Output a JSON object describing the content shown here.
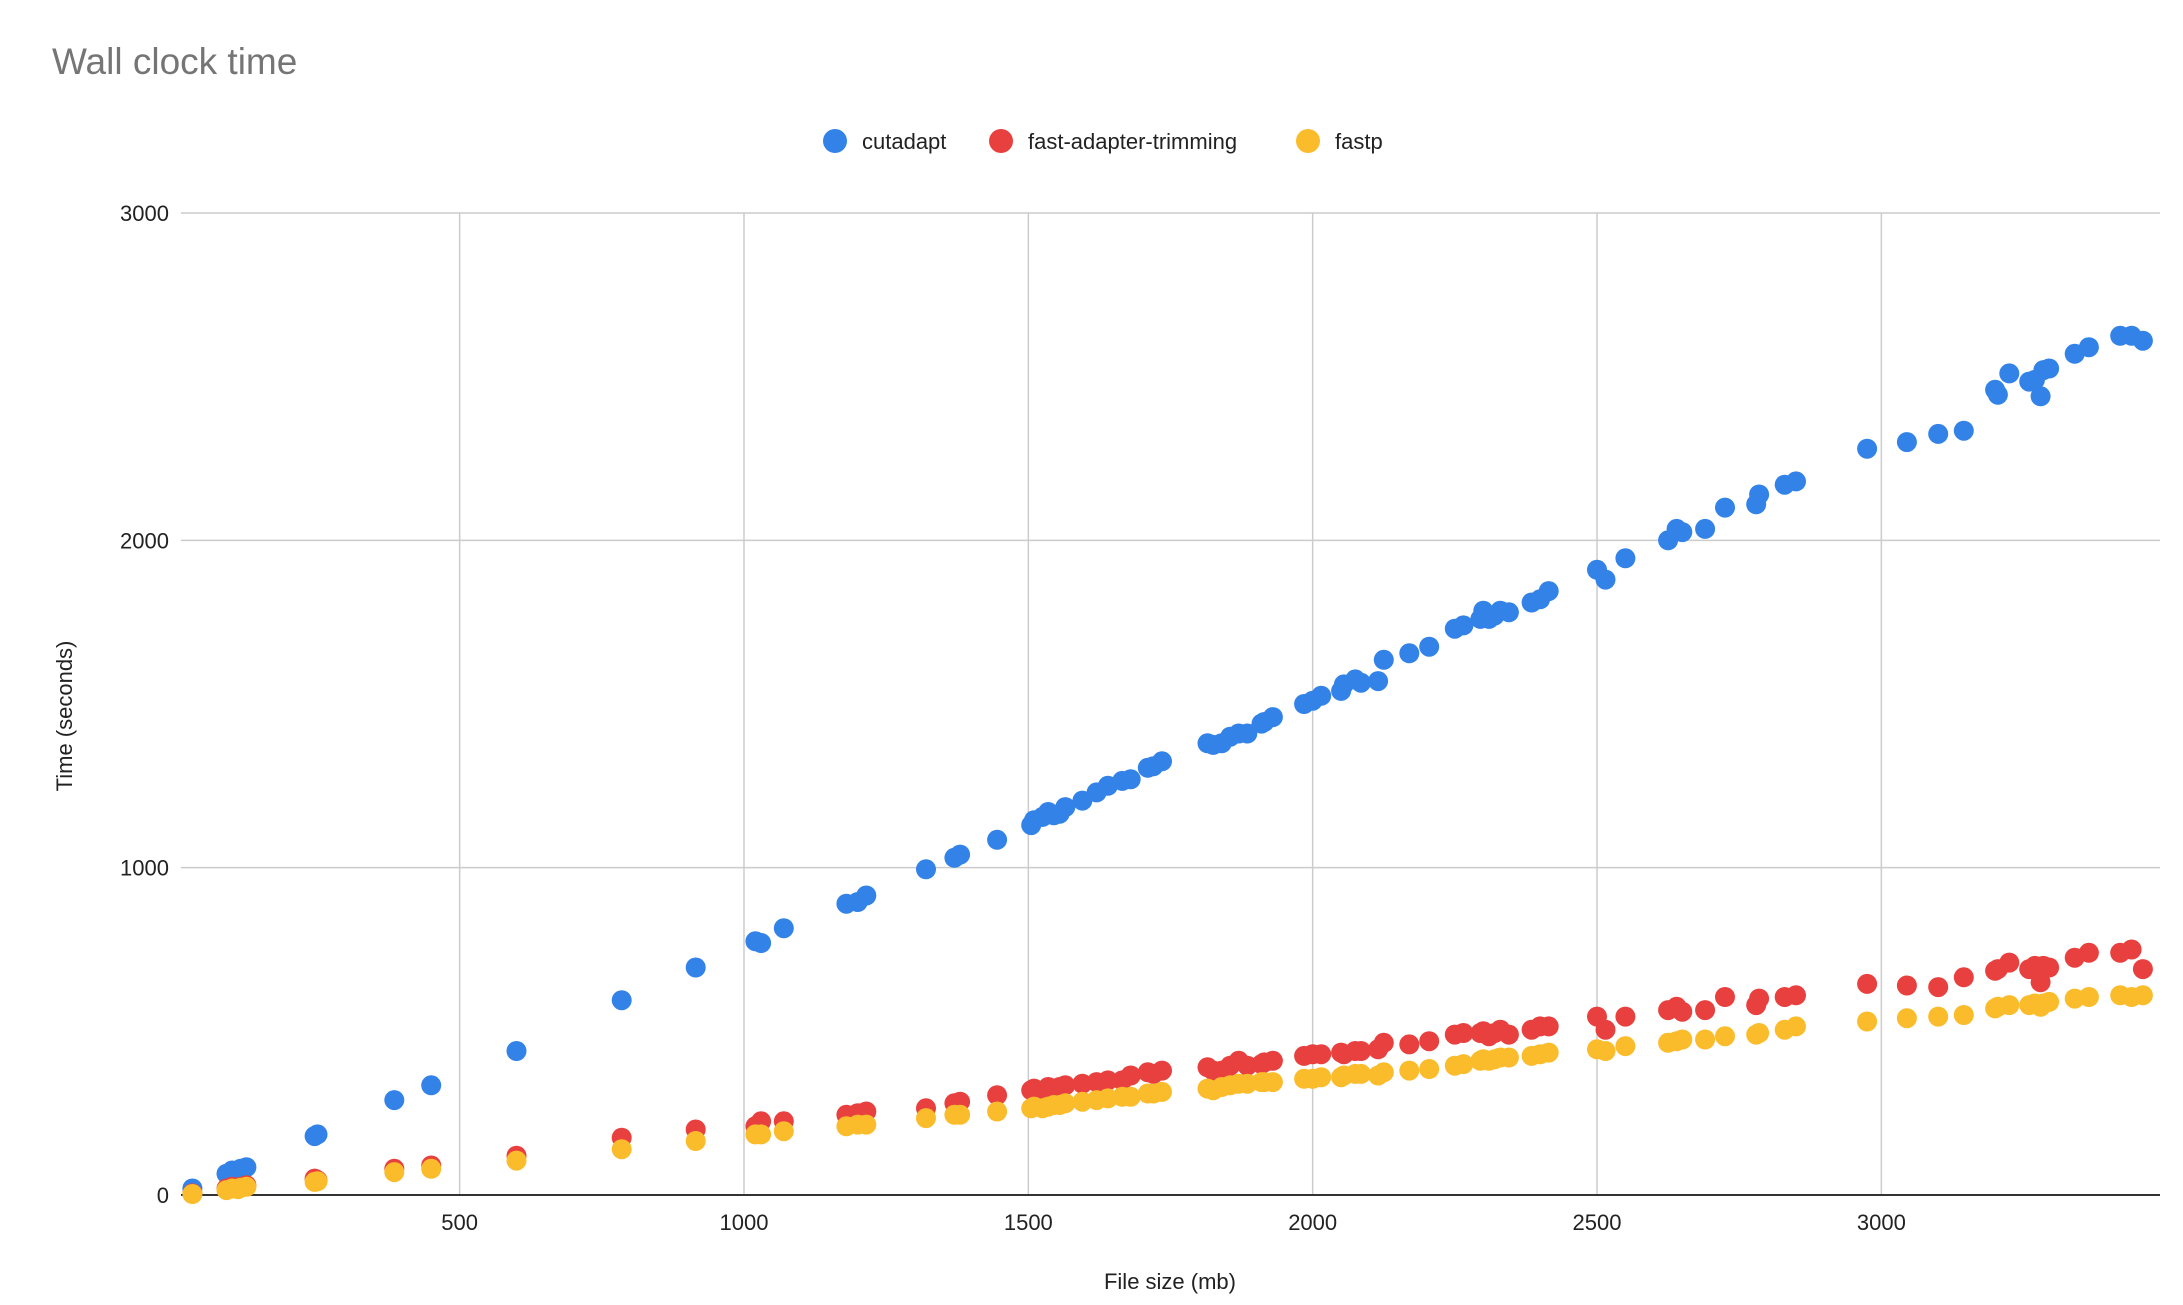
{
  "chart_data": {
    "type": "scatter",
    "title": "Wall clock time",
    "xlabel": "File size (mb)",
    "ylabel": "Time (seconds)",
    "xlim": [
      10,
      3490
    ],
    "ylim": [
      0,
      3000
    ],
    "xticks": [
      500,
      1000,
      1500,
      2000,
      2500,
      3000
    ],
    "yticks": [
      0,
      1000,
      2000,
      3000
    ],
    "legend_position": "top-center",
    "grid": true,
    "series": [
      {
        "name": "cutadapt",
        "color": "#3282e8",
        "x": [
          30,
          90,
          100,
          110,
          115,
          125,
          245,
          250,
          385,
          450,
          600,
          785,
          915,
          1020,
          1030,
          1070,
          1180,
          1200,
          1215,
          1320,
          1370,
          1380,
          1445,
          1505,
          1510,
          1525,
          1535,
          1545,
          1555,
          1565,
          1595,
          1620,
          1640,
          1665,
          1680,
          1710,
          1720,
          1735,
          1815,
          1825,
          1840,
          1855,
          1870,
          1885,
          1910,
          1915,
          1930,
          1985,
          2000,
          2015,
          2050,
          2055,
          2075,
          2085,
          2115,
          2125,
          2170,
          2205,
          2250,
          2265,
          2295,
          2300,
          2310,
          2320,
          2330,
          2345,
          2385,
          2400,
          2415,
          2500,
          2515,
          2550,
          2625,
          2640,
          2650,
          2690,
          2725,
          2780,
          2785,
          2830,
          2850,
          2975,
          3045,
          3100,
          3145,
          3200,
          3205,
          3225,
          3260,
          3270,
          3280,
          3285,
          3295,
          3340,
          3365,
          3420,
          3440,
          3460
        ],
        "y": [
          20,
          65,
          75,
          70,
          80,
          85,
          180,
          185,
          290,
          335,
          440,
          595,
          695,
          775,
          770,
          815,
          890,
          895,
          915,
          995,
          1030,
          1040,
          1085,
          1130,
          1145,
          1155,
          1170,
          1160,
          1165,
          1185,
          1205,
          1230,
          1250,
          1265,
          1270,
          1305,
          1310,
          1325,
          1380,
          1375,
          1380,
          1400,
          1410,
          1410,
          1440,
          1445,
          1460,
          1500,
          1510,
          1525,
          1540,
          1560,
          1575,
          1565,
          1570,
          1635,
          1655,
          1675,
          1730,
          1740,
          1760,
          1785,
          1760,
          1770,
          1785,
          1780,
          1810,
          1820,
          1845,
          1910,
          1880,
          1945,
          2000,
          2035,
          2025,
          2035,
          2100,
          2110,
          2140,
          2170,
          2180,
          2280,
          2300,
          2325,
          2335,
          2460,
          2445,
          2510,
          2485,
          2490,
          2440,
          2520,
          2525,
          2570,
          2590,
          2625,
          2625,
          2610
        ]
      },
      {
        "name": "fast-adapter-trimming",
        "color": "#e8403e",
        "x": [
          30,
          90,
          100,
          110,
          115,
          125,
          245,
          250,
          385,
          450,
          600,
          785,
          915,
          1020,
          1030,
          1070,
          1180,
          1200,
          1215,
          1320,
          1370,
          1380,
          1445,
          1505,
          1510,
          1525,
          1535,
          1545,
          1555,
          1565,
          1595,
          1620,
          1640,
          1665,
          1680,
          1710,
          1720,
          1735,
          1815,
          1825,
          1840,
          1855,
          1870,
          1885,
          1910,
          1915,
          1930,
          1985,
          2000,
          2015,
          2050,
          2055,
          2075,
          2085,
          2115,
          2125,
          2170,
          2205,
          2250,
          2265,
          2295,
          2300,
          2310,
          2320,
          2330,
          2345,
          2385,
          2400,
          2415,
          2500,
          2515,
          2550,
          2625,
          2640,
          2650,
          2690,
          2725,
          2780,
          2785,
          2830,
          2850,
          2975,
          3045,
          3100,
          3145,
          3200,
          3205,
          3225,
          3260,
          3270,
          3280,
          3285,
          3295,
          3340,
          3365,
          3420,
          3440,
          3460
        ],
        "y": [
          5,
          20,
          25,
          20,
          25,
          30,
          50,
          45,
          80,
          90,
          120,
          175,
          200,
          210,
          225,
          225,
          245,
          250,
          255,
          265,
          280,
          285,
          305,
          320,
          325,
          315,
          330,
          325,
          330,
          335,
          340,
          345,
          350,
          350,
          365,
          375,
          370,
          380,
          390,
          380,
          380,
          395,
          410,
          395,
          400,
          405,
          410,
          425,
          430,
          430,
          435,
          430,
          440,
          440,
          445,
          465,
          460,
          470,
          490,
          495,
          495,
          500,
          485,
          495,
          505,
          490,
          505,
          515,
          515,
          545,
          505,
          545,
          565,
          575,
          560,
          565,
          605,
          580,
          600,
          605,
          610,
          645,
          640,
          635,
          665,
          685,
          690,
          710,
          690,
          700,
          650,
          700,
          695,
          725,
          740,
          740,
          750,
          690
        ]
      },
      {
        "name": "fastp",
        "color": "#fbbc2c",
        "x": [
          30,
          90,
          100,
          110,
          115,
          125,
          245,
          250,
          385,
          450,
          600,
          785,
          915,
          1020,
          1030,
          1070,
          1180,
          1200,
          1215,
          1320,
          1370,
          1380,
          1445,
          1505,
          1510,
          1525,
          1535,
          1545,
          1555,
          1565,
          1595,
          1620,
          1640,
          1665,
          1680,
          1710,
          1720,
          1735,
          1815,
          1825,
          1840,
          1855,
          1870,
          1885,
          1910,
          1915,
          1930,
          1985,
          2000,
          2015,
          2050,
          2055,
          2075,
          2085,
          2115,
          2125,
          2170,
          2205,
          2250,
          2265,
          2295,
          2300,
          2310,
          2320,
          2330,
          2345,
          2385,
          2400,
          2415,
          2500,
          2515,
          2550,
          2625,
          2640,
          2650,
          2690,
          2725,
          2780,
          2785,
          2830,
          2850,
          2975,
          3045,
          3100,
          3145,
          3200,
          3205,
          3225,
          3260,
          3270,
          3280,
          3285,
          3295,
          3340,
          3365,
          3420,
          3440,
          3460
        ],
        "y": [
          3,
          15,
          20,
          18,
          22,
          25,
          40,
          42,
          70,
          80,
          105,
          140,
          165,
          185,
          185,
          195,
          210,
          215,
          215,
          235,
          245,
          245,
          255,
          265,
          270,
          265,
          270,
          275,
          275,
          280,
          285,
          290,
          295,
          300,
          300,
          310,
          310,
          315,
          325,
          320,
          330,
          335,
          340,
          340,
          345,
          345,
          345,
          355,
          355,
          360,
          360,
          365,
          370,
          370,
          365,
          375,
          380,
          385,
          395,
          400,
          410,
          415,
          410,
          415,
          420,
          420,
          425,
          430,
          435,
          445,
          440,
          455,
          465,
          470,
          475,
          475,
          485,
          490,
          495,
          505,
          515,
          530,
          540,
          545,
          550,
          570,
          575,
          580,
          580,
          585,
          575,
          585,
          590,
          600,
          605,
          610,
          605,
          610
        ]
      }
    ]
  }
}
